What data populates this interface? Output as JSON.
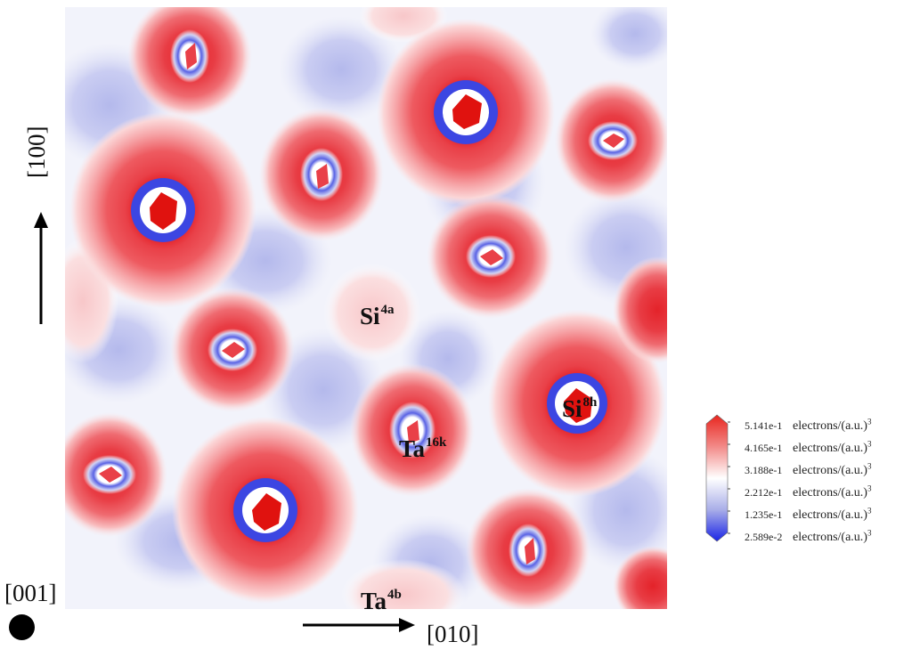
{
  "labels": {
    "si4a": {
      "base": "Si",
      "sup": "4a"
    },
    "si8h": {
      "base": "Si",
      "sup": "8h"
    },
    "ta16k": {
      "base": "Ta",
      "sup": "16k"
    },
    "ta4b": {
      "base": "Ta",
      "sup": "4b"
    }
  },
  "axes": {
    "vertical": "[100]",
    "horizontal": "[010]",
    "view": "[001]"
  },
  "legend": {
    "unit": "electrons/(a.u.)",
    "unit_power": "3",
    "levels": [
      "5.141e-1",
      "4.165e-1",
      "3.188e-1",
      "2.212e-1",
      "1.235e-1",
      "2.589e-2"
    ],
    "colors": [
      "#e8261f",
      "#f28a88",
      "#ffffff",
      "#a9aee8",
      "#1a24e6"
    ]
  },
  "colors": {
    "background_field": "#dde0f8",
    "high_density": "#e11e1e",
    "low_density": "#3c46e6"
  }
}
